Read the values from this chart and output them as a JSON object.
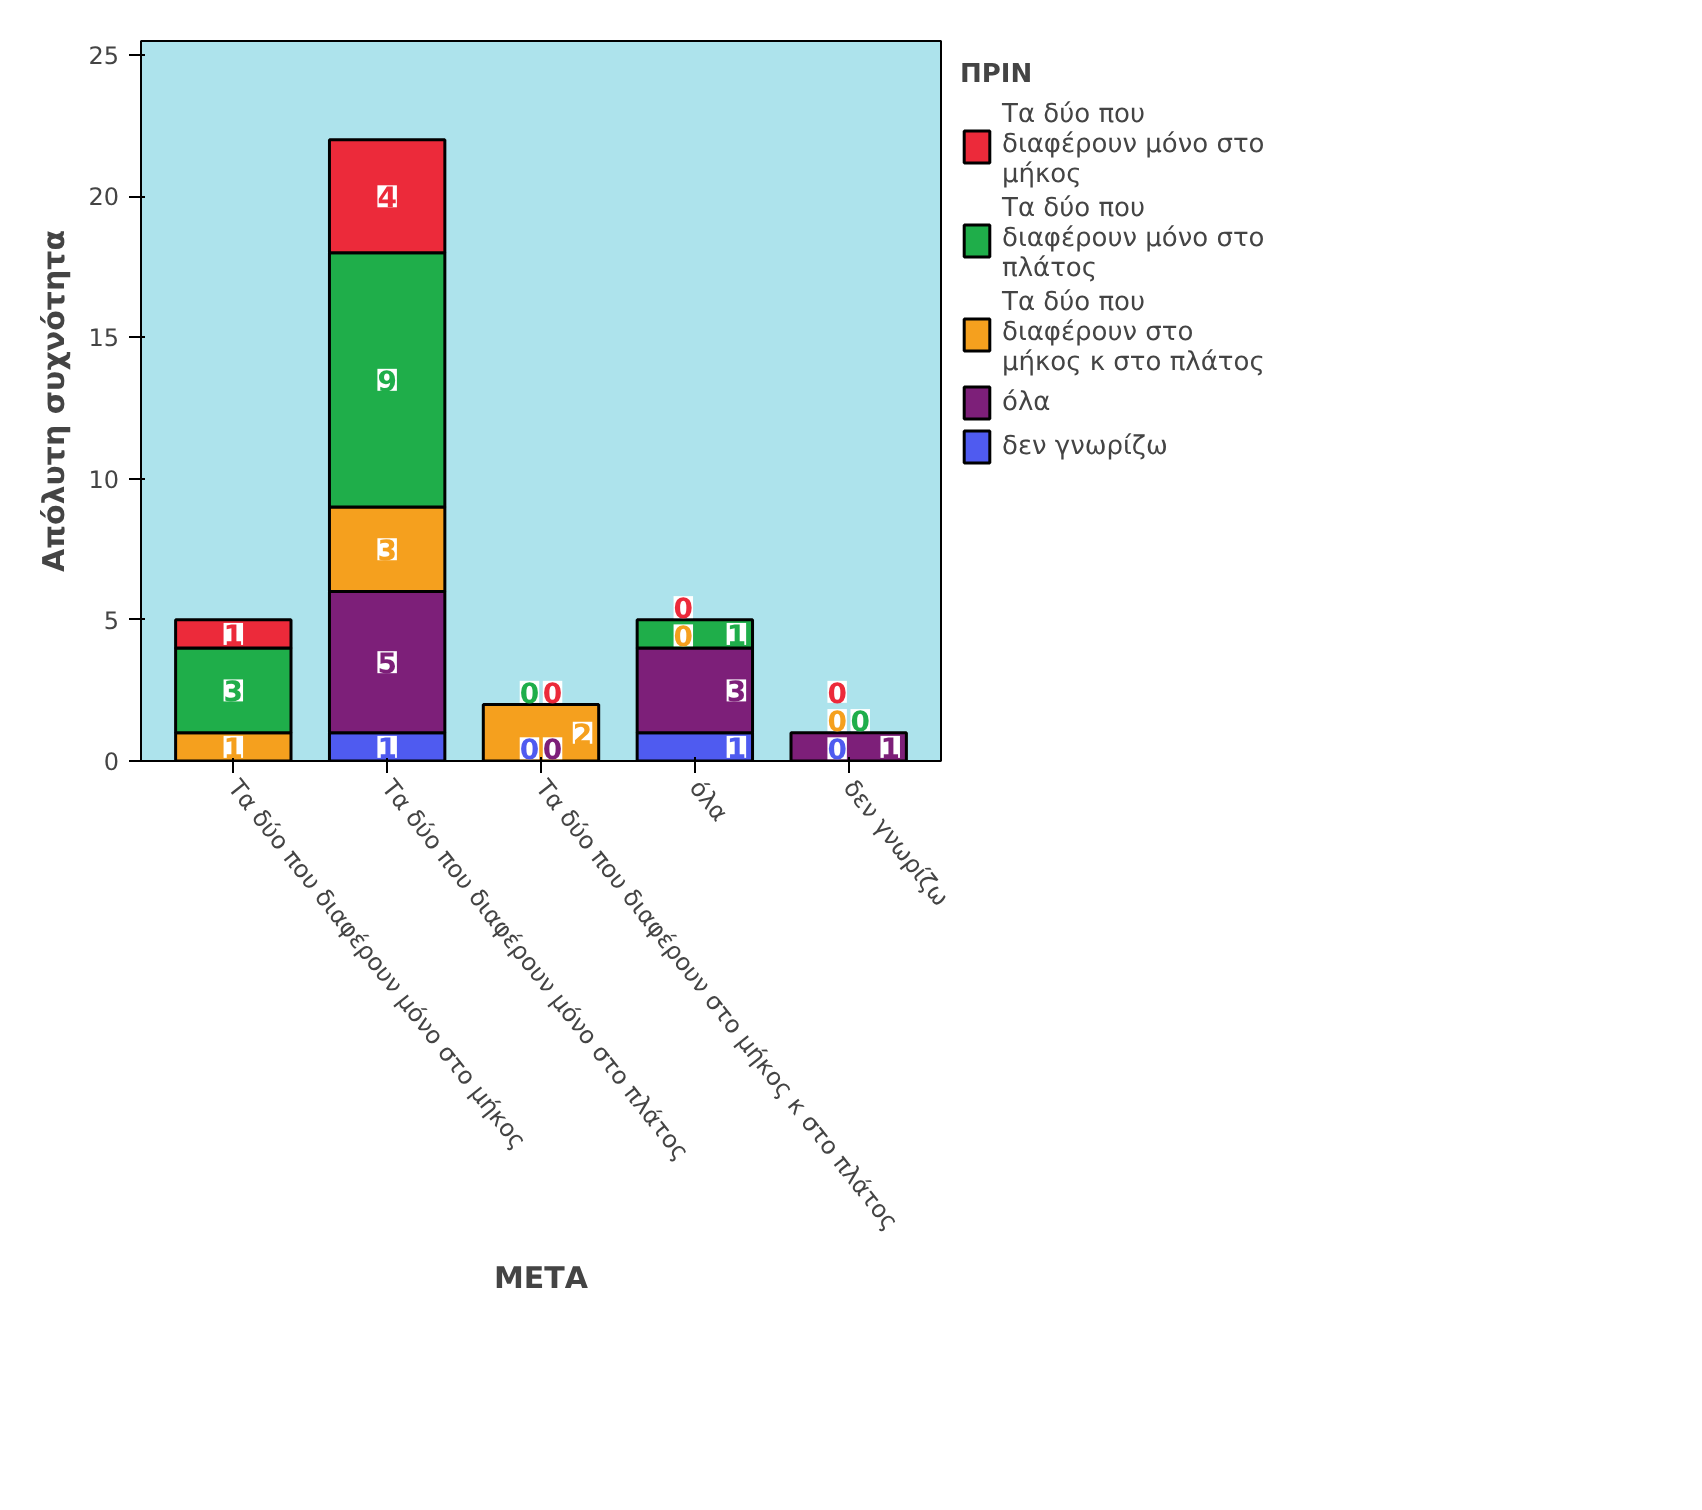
{
  "chart_data": {
    "type": "bar",
    "stacked": true,
    "xlabel": "ΜΕΤΑ",
    "ylabel": "Απόλυτη συχνότητα",
    "legend_title": "ΠΡΙΝ",
    "legend": "right",
    "grid": false,
    "categories": [
      "Τα δύο που διαφέρουν μόνο στο μήκος",
      "Τα δύο που διαφέρουν μόνο στο πλάτος",
      "Τα δύο που διαφέρουν στο μήκος κ στο πλάτος",
      "όλα",
      "δεν γνωρίζω"
    ],
    "ylim": [
      0,
      25.5
    ],
    "yticks": [
      0,
      5,
      10,
      15,
      20,
      25
    ],
    "series": [
      {
        "name": "δεν γνωρίζω",
        "color": "#4f5bf0",
        "values": [
          0,
          1,
          0,
          1,
          0
        ],
        "value_labels": [
          null,
          "1",
          "0",
          "1",
          "0"
        ]
      },
      {
        "name": "όλα",
        "color": "#7d1f79",
        "values": [
          0,
          5,
          0,
          3,
          1
        ],
        "value_labels": [
          null,
          "5",
          "0",
          "3",
          "1"
        ]
      },
      {
        "name": "Τα δύο που διαφέρουν στο μήκος κ στο πλάτος",
        "color": "#f5a01e",
        "values": [
          1,
          3,
          2,
          0,
          0
        ],
        "value_labels": [
          "1",
          "3",
          "2",
          "0",
          "0"
        ]
      },
      {
        "name": "Τα δύο που διαφέρουν μόνο στο πλάτος",
        "color": "#1fae4a",
        "values": [
          3,
          9,
          0,
          1,
          0
        ],
        "value_labels": [
          "3",
          "9",
          "0",
          "1",
          "0"
        ]
      },
      {
        "name": "Τα δύο που διαφέρουν μόνο στο μήκος",
        "color": "#ec2a3a",
        "values": [
          1,
          4,
          0,
          0,
          0
        ],
        "value_labels": [
          "1",
          "4",
          "0",
          "0",
          "0"
        ]
      }
    ]
  }
}
